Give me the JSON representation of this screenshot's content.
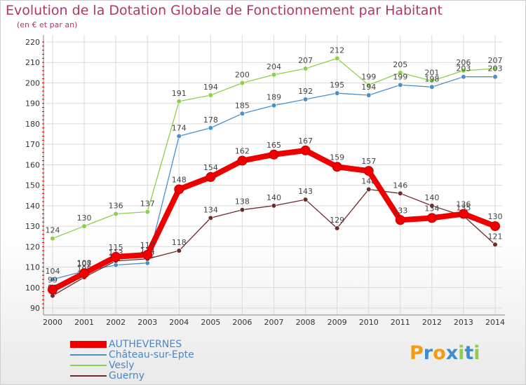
{
  "chart_data": {
    "type": "line",
    "title": "Evolution de la Dotation Globale de Fonctionnement par Habitant",
    "subtitle": "(en € et par an)",
    "xlabel": "",
    "ylabel": "",
    "ylim": [
      90,
      220
    ],
    "yticks": [
      90,
      100,
      110,
      120,
      130,
      140,
      150,
      160,
      170,
      180,
      190,
      200,
      210,
      220
    ],
    "categories": [
      "2000",
      "2001",
      "2002",
      "2003",
      "2004",
      "2005",
      "2006",
      "2007",
      "2008",
      "2009",
      "2010",
      "2011",
      "2012",
      "2013",
      "2014"
    ],
    "grid": true,
    "legend_position": "bottom-left",
    "series": [
      {
        "name": "Vesly",
        "color": "#8ccf4a",
        "values": [
          124,
          130,
          136,
          137,
          191,
          194,
          200,
          204,
          207,
          212,
          199,
          205,
          201,
          206,
          207
        ]
      },
      {
        "name": "Château-sur-Epte",
        "color": "#4a90c8",
        "values": [
          104,
          108,
          111,
          112,
          174,
          178,
          185,
          189,
          192,
          195,
          194,
          199,
          198,
          203,
          203
        ]
      },
      {
        "name": "Guerny",
        "color": "#6e2b2b",
        "values": [
          96,
          105,
          113,
          114,
          118,
          134,
          138,
          140,
          143,
          129,
          148,
          146,
          140,
          135,
          121
        ]
      },
      {
        "name": "AUTHEVERNES",
        "color": "#ee0000",
        "values": [
          99,
          107,
          115,
          116,
          148,
          154,
          162,
          165,
          167,
          159,
          157,
          133,
          134,
          136,
          130
        ]
      }
    ],
    "legend_order": [
      "AUTHEVERNES",
      "Château-sur-Epte",
      "Vesly",
      "Guerny"
    ]
  },
  "logo": {
    "letters": [
      "P",
      "r",
      "o",
      "x",
      "i",
      "t",
      "i"
    ],
    "colors": [
      "#f39c12",
      "#3c8ed0",
      "#f39c12",
      "#3c8ed0",
      "#8ccf4a",
      "#3c8ed0",
      "#8ccf4a"
    ]
  }
}
